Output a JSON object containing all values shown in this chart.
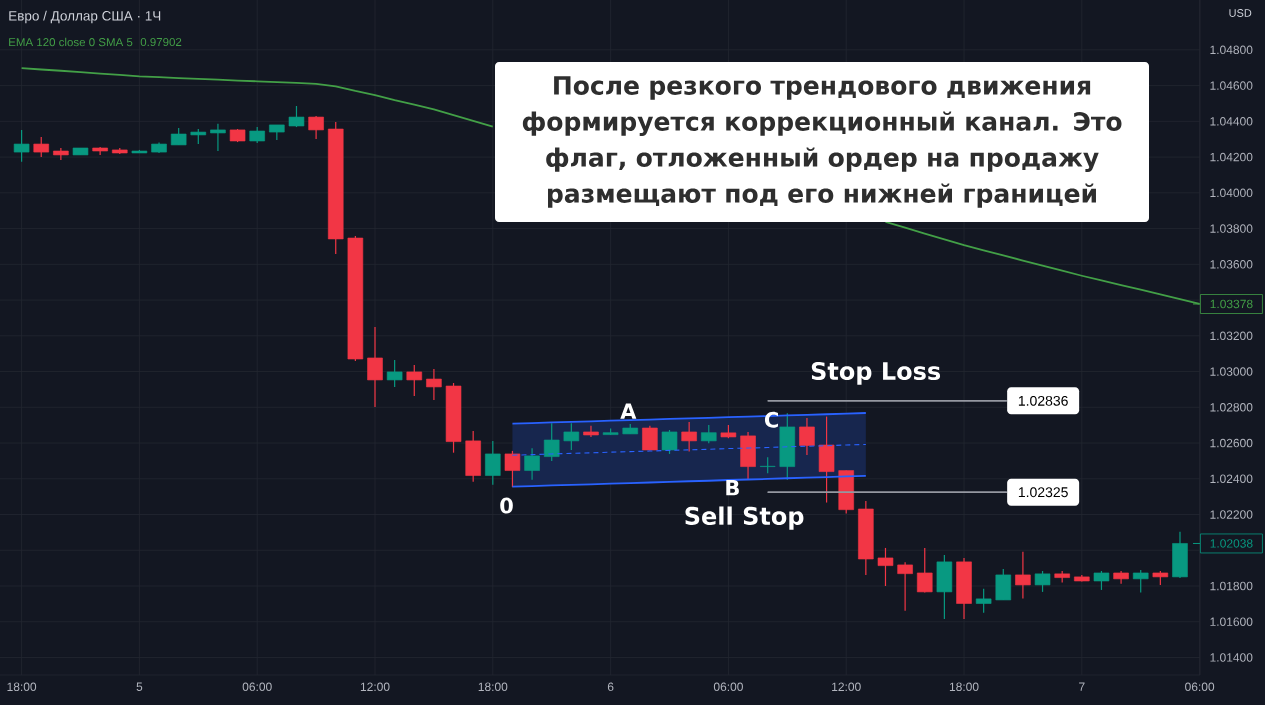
{
  "chart_data": {
    "type": "candlestick",
    "title": "Евро / Доллар США · 1Ч",
    "categories": [
      "18:00",
      null,
      null,
      null,
      null,
      null,
      "5",
      null,
      null,
      null,
      null,
      null,
      "06:00",
      null,
      null,
      null,
      null,
      null,
      "12:00",
      null,
      null,
      null,
      null,
      null,
      "18:00",
      null,
      null,
      null,
      null,
      null,
      "6",
      null,
      null,
      null,
      null,
      null,
      "06:00",
      null,
      null,
      null,
      null,
      null,
      "12:00",
      null,
      null,
      null,
      null,
      null,
      "18:00",
      null,
      null,
      null,
      null,
      null,
      "7",
      null,
      null,
      null,
      null,
      null,
      "06:00"
    ],
    "ohlc": [
      [
        1.04228,
        1.04352,
        1.04174,
        1.04273
      ],
      [
        1.04273,
        1.04312,
        1.042,
        1.04228
      ],
      [
        1.04234,
        1.04251,
        1.04184,
        1.04212
      ],
      [
        1.04212,
        1.04251,
        1.04212,
        1.04251
      ],
      [
        1.04251,
        1.04256,
        1.04212,
        1.04234
      ],
      [
        1.0424,
        1.04251,
        1.04217,
        1.04223
      ],
      [
        1.04223,
        1.0424,
        1.04223,
        1.04234
      ],
      [
        1.04228,
        1.04281,
        1.04223,
        1.04273
      ],
      [
        1.04268,
        1.04363,
        1.04268,
        1.04329
      ],
      [
        1.04324,
        1.04357,
        1.04273,
        1.0434
      ],
      [
        1.04335,
        1.04387,
        1.04234,
        1.04352
      ],
      [
        1.04352,
        1.04357,
        1.04284,
        1.0429
      ],
      [
        1.0429,
        1.04368,
        1.04279,
        1.04346
      ],
      [
        1.0434,
        1.0438,
        1.04296,
        1.0438
      ],
      [
        1.04374,
        1.04486,
        1.04368,
        1.04424
      ],
      [
        1.04424,
        1.0443,
        1.04301,
        1.04352
      ],
      [
        1.04357,
        1.04396,
        1.03658,
        1.03742
      ],
      [
        1.03747,
        1.03758,
        1.03059,
        1.0307
      ],
      [
        1.03076,
        1.03249,
        1.02802,
        1.02953
      ],
      [
        1.02953,
        1.03065,
        1.02914,
        1.02998
      ],
      [
        1.02998,
        1.03037,
        1.02863,
        1.02953
      ],
      [
        1.02958,
        1.03014,
        1.02841,
        1.02914
      ],
      [
        1.02919,
        1.02936,
        1.02546,
        1.02608
      ],
      [
        1.02612,
        1.02668,
        1.02384,
        1.02418
      ],
      [
        1.02418,
        1.02612,
        1.02366,
        1.02539
      ],
      [
        1.02539,
        1.02556,
        1.02353,
        1.02446
      ],
      [
        1.02446,
        1.02571,
        1.02394,
        1.02528
      ],
      [
        1.02524,
        1.02711,
        1.025,
        1.02617
      ],
      [
        1.02612,
        1.02711,
        1.02561,
        1.02662
      ],
      [
        1.02662,
        1.02696,
        1.02634,
        1.02645
      ],
      [
        1.02647,
        1.02681,
        1.02645,
        1.02658
      ],
      [
        1.02651,
        1.02707,
        1.02651,
        1.02684
      ],
      [
        1.02684,
        1.02696,
        1.02558,
        1.02561
      ],
      [
        1.02561,
        1.02673,
        1.02539,
        1.02662
      ],
      [
        1.02662,
        1.02718,
        1.02552,
        1.02612
      ],
      [
        1.02612,
        1.02701,
        1.02599,
        1.02658
      ],
      [
        1.02657,
        1.02701,
        1.02627,
        1.02634
      ],
      [
        1.0264,
        1.02662,
        1.02397,
        1.02468
      ],
      [
        1.02468,
        1.0252,
        1.02431,
        1.0247
      ],
      [
        1.02468,
        1.02767,
        1.02394,
        1.0269
      ],
      [
        1.0269,
        1.0274,
        1.02533,
        1.02586
      ],
      [
        1.02589,
        1.02748,
        1.02267,
        1.0244
      ],
      [
        1.02446,
        1.02446,
        1.02205,
        1.02227
      ],
      [
        1.02231,
        1.02276,
        1.01862,
        1.01951
      ],
      [
        1.01957,
        1.02013,
        1.018,
        1.01914
      ],
      [
        1.01918,
        1.01933,
        1.01662,
        1.01869
      ],
      [
        1.01873,
        1.02013,
        1.01763,
        1.01767
      ],
      [
        1.01767,
        1.01974,
        1.01616,
        1.01935
      ],
      [
        1.01935,
        1.01957,
        1.01616,
        1.01702
      ],
      [
        1.01702,
        1.01784,
        1.01651,
        1.01728
      ],
      [
        1.01722,
        1.01895,
        1.01722,
        1.01862
      ],
      [
        1.01862,
        1.01991,
        1.0173,
        1.01806
      ],
      [
        1.01806,
        1.01884,
        1.01767,
        1.01868
      ],
      [
        1.01868,
        1.01884,
        1.01819,
        1.01847
      ],
      [
        1.01851,
        1.01862,
        1.01825,
        1.01828
      ],
      [
        1.01828,
        1.01884,
        1.01778,
        1.01873
      ],
      [
        1.01873,
        1.01884,
        1.01812,
        1.0184
      ],
      [
        1.0184,
        1.0189,
        1.01763,
        1.01873
      ],
      [
        1.01873,
        1.01884,
        1.01806,
        1.01851
      ],
      [
        1.01851,
        1.02103,
        1.01845,
        1.02038
      ],
      null
    ],
    "colors": [
      "#089981",
      "#f23645",
      "#f23645",
      "#089981",
      "#f23645",
      "#f23645",
      "#089981",
      "#089981",
      "#089981",
      "#089981",
      "#089981",
      "#f23645",
      "#089981",
      "#089981",
      "#089981",
      "#f23645",
      "#f23645",
      "#f23645",
      "#f23645",
      "#089981",
      "#f23645",
      "#f23645",
      "#f23645",
      "#f23645",
      "#089981",
      "#f23645",
      "#089981",
      "#089981",
      "#089981",
      "#f23645",
      "#089981",
      "#089981",
      "#f23645",
      "#089981",
      "#f23645",
      "#089981",
      "#f23645",
      "#f23645",
      "#089981",
      "#089981",
      "#f23645",
      "#f23645",
      "#f23645",
      "#f23645",
      "#f23645",
      "#f23645",
      "#f23645",
      "#089981",
      "#f23645",
      "#089981",
      "#089981",
      "#f23645",
      "#089981",
      "#f23645",
      "#f23645",
      "#089981",
      "#f23645",
      "#089981",
      "#f23645",
      "#089981",
      null
    ],
    "series": [
      {
        "name": "EMA 120 close 0 SMA 5",
        "type": "line",
        "color": "#43a047",
        "values": [
          1.04698,
          1.0469,
          1.04683,
          1.04675,
          1.04667,
          1.0466,
          1.04652,
          1.04647,
          1.04642,
          1.04638,
          1.04633,
          1.04628,
          1.04624,
          1.04619,
          1.04615,
          1.0461,
          1.04596,
          1.0457,
          1.04547,
          1.04519,
          1.04494,
          1.04467,
          1.04435,
          1.04402,
          1.0437,
          null,
          null,
          null,
          null,
          null,
          null,
          null,
          null,
          null,
          null,
          null,
          null,
          null,
          null,
          null,
          null,
          null,
          null,
          null,
          1.03837,
          1.03805,
          1.03772,
          1.0374,
          1.03707,
          1.03678,
          1.0365,
          1.03621,
          1.03592,
          1.03564,
          1.03536,
          1.0351,
          1.03484,
          1.03458,
          1.03432,
          1.03405,
          1.03378
        ]
      },
      {
        "type": "line",
        "color": "#2962ff",
        "values": [
          null,
          null,
          null,
          null,
          null,
          null,
          null,
          null,
          null,
          null,
          null,
          null,
          null,
          null,
          null,
          null,
          null,
          null,
          null,
          null,
          null,
          null,
          null,
          null,
          null,
          1.02708,
          1.02711,
          1.02715,
          1.02718,
          1.02721,
          1.02725,
          1.02728,
          1.02731,
          1.02735,
          1.02738,
          1.02741,
          1.02745,
          1.02748,
          1.02751,
          1.02755,
          1.02758,
          1.02761,
          1.02765,
          1.02768,
          null,
          null,
          null,
          null,
          null,
          null,
          null,
          null,
          null,
          null,
          null,
          null,
          null,
          null,
          null,
          null,
          null
        ]
      },
      {
        "type": "line",
        "color": "#2962ff",
        "values": [
          null,
          null,
          null,
          null,
          null,
          null,
          null,
          null,
          null,
          null,
          null,
          null,
          null,
          null,
          null,
          null,
          null,
          null,
          null,
          null,
          null,
          null,
          null,
          null,
          null,
          1.02356,
          1.02359,
          1.02363,
          1.02366,
          1.02369,
          1.02373,
          1.02376,
          1.02379,
          1.02383,
          1.02386,
          1.02389,
          1.02393,
          1.02396,
          1.02399,
          1.02403,
          1.02406,
          1.02409,
          1.02413,
          1.02416,
          null,
          null,
          null,
          null,
          null,
          null,
          null,
          null,
          null,
          null,
          null,
          null,
          null,
          null,
          null,
          null,
          null
        ]
      },
      {
        "type": "line",
        "line_style": "dashed",
        "color": "#2962ff",
        "values": [
          null,
          null,
          null,
          null,
          null,
          null,
          null,
          null,
          null,
          null,
          null,
          null,
          null,
          null,
          null,
          null,
          null,
          null,
          null,
          null,
          null,
          null,
          null,
          null,
          null,
          1.02532,
          1.02535,
          1.02539,
          1.02542,
          1.02545,
          1.02549,
          1.02552,
          1.02555,
          1.02559,
          1.02562,
          1.02565,
          1.02569,
          1.02572,
          1.02575,
          1.02579,
          1.02582,
          1.02585,
          1.02589,
          1.02592,
          null,
          null,
          null,
          null,
          null,
          null,
          null,
          null,
          null,
          null,
          null,
          null,
          null,
          null,
          null,
          null,
          null
        ],
        "lower": [
          null,
          null,
          null,
          null,
          null,
          null,
          null,
          null,
          null,
          null,
          null,
          null,
          null,
          null,
          null,
          null,
          null,
          null,
          null,
          null,
          null,
          null,
          null,
          null,
          null,
          1.02356,
          1.02359,
          1.02363,
          1.02366,
          1.02369,
          1.02373,
          1.02376,
          1.02379,
          1.02383,
          1.02386,
          1.02389,
          1.02393,
          1.02396,
          1.02399,
          1.02403,
          1.02406,
          1.02409,
          1.02413,
          1.02416,
          null,
          null,
          null,
          null,
          null,
          null,
          null,
          null,
          null,
          null,
          null,
          null,
          null,
          null,
          null,
          null,
          null
        ],
        "upper": [
          null,
          null,
          null,
          null,
          null,
          null,
          null,
          null,
          null,
          null,
          null,
          null,
          null,
          null,
          null,
          null,
          null,
          null,
          null,
          null,
          null,
          null,
          null,
          null,
          null,
          1.02708,
          1.02711,
          1.02715,
          1.02718,
          1.02721,
          1.02725,
          1.02728,
          1.02731,
          1.02735,
          1.02738,
          1.02741,
          1.02745,
          1.02748,
          1.02751,
          1.02755,
          1.02758,
          1.02761,
          1.02765,
          1.02768,
          null,
          null,
          null,
          null,
          null,
          null,
          null,
          null,
          null,
          null,
          null,
          null,
          null,
          null,
          null,
          null,
          null
        ]
      }
    ],
    "ylim": [
      1.01302,
      1.05079
    ],
    "yticks": [
      {
        "value": 1.014,
        "label": "1.01400"
      },
      {
        "value": 1.016,
        "label": "1.01600"
      },
      {
        "value": 1.018,
        "label": "1.01800"
      },
      {
        "value": 1.02,
        "label": null
      },
      {
        "value": 1.022,
        "label": "1.02200"
      },
      {
        "value": 1.024,
        "label": "1.02400"
      },
      {
        "value": 1.026,
        "label": "1.02600"
      },
      {
        "value": 1.028,
        "label": "1.02800"
      },
      {
        "value": 1.03,
        "label": "1.03000"
      },
      {
        "value": 1.032,
        "label": "1.03200"
      },
      {
        "value": 1.034,
        "label": null
      },
      {
        "value": 1.036,
        "label": "1.03600"
      },
      {
        "value": 1.038,
        "label": "1.03800"
      },
      {
        "value": 1.04,
        "label": "1.04000"
      },
      {
        "value": 1.042,
        "label": "1.04200"
      },
      {
        "value": 1.044,
        "label": "1.04400"
      },
      {
        "value": 1.046,
        "label": "1.04600"
      },
      {
        "value": 1.048,
        "label": "1.04800"
      }
    ],
    "ref_lines": [
      {
        "axis": "y",
        "value": 1.02836,
        "label": "1.02836",
        "color": "#9598a1"
      },
      {
        "axis": "y",
        "value": 1.02325,
        "label": "1.02325",
        "color": "#9598a1"
      }
    ],
    "grid": true,
    "legend": "top left",
    "annotations": [
      "После резкого трендового движения формируется коррекционный канал. Это флаг, отложенный ордер на продажу размещают под его нижней границей",
      "A",
      "B",
      "C",
      "0",
      "Stop Loss",
      "Sell Stop",
      "1.03378",
      "1.02038",
      "0.97902",
      "USD"
    ]
  }
}
